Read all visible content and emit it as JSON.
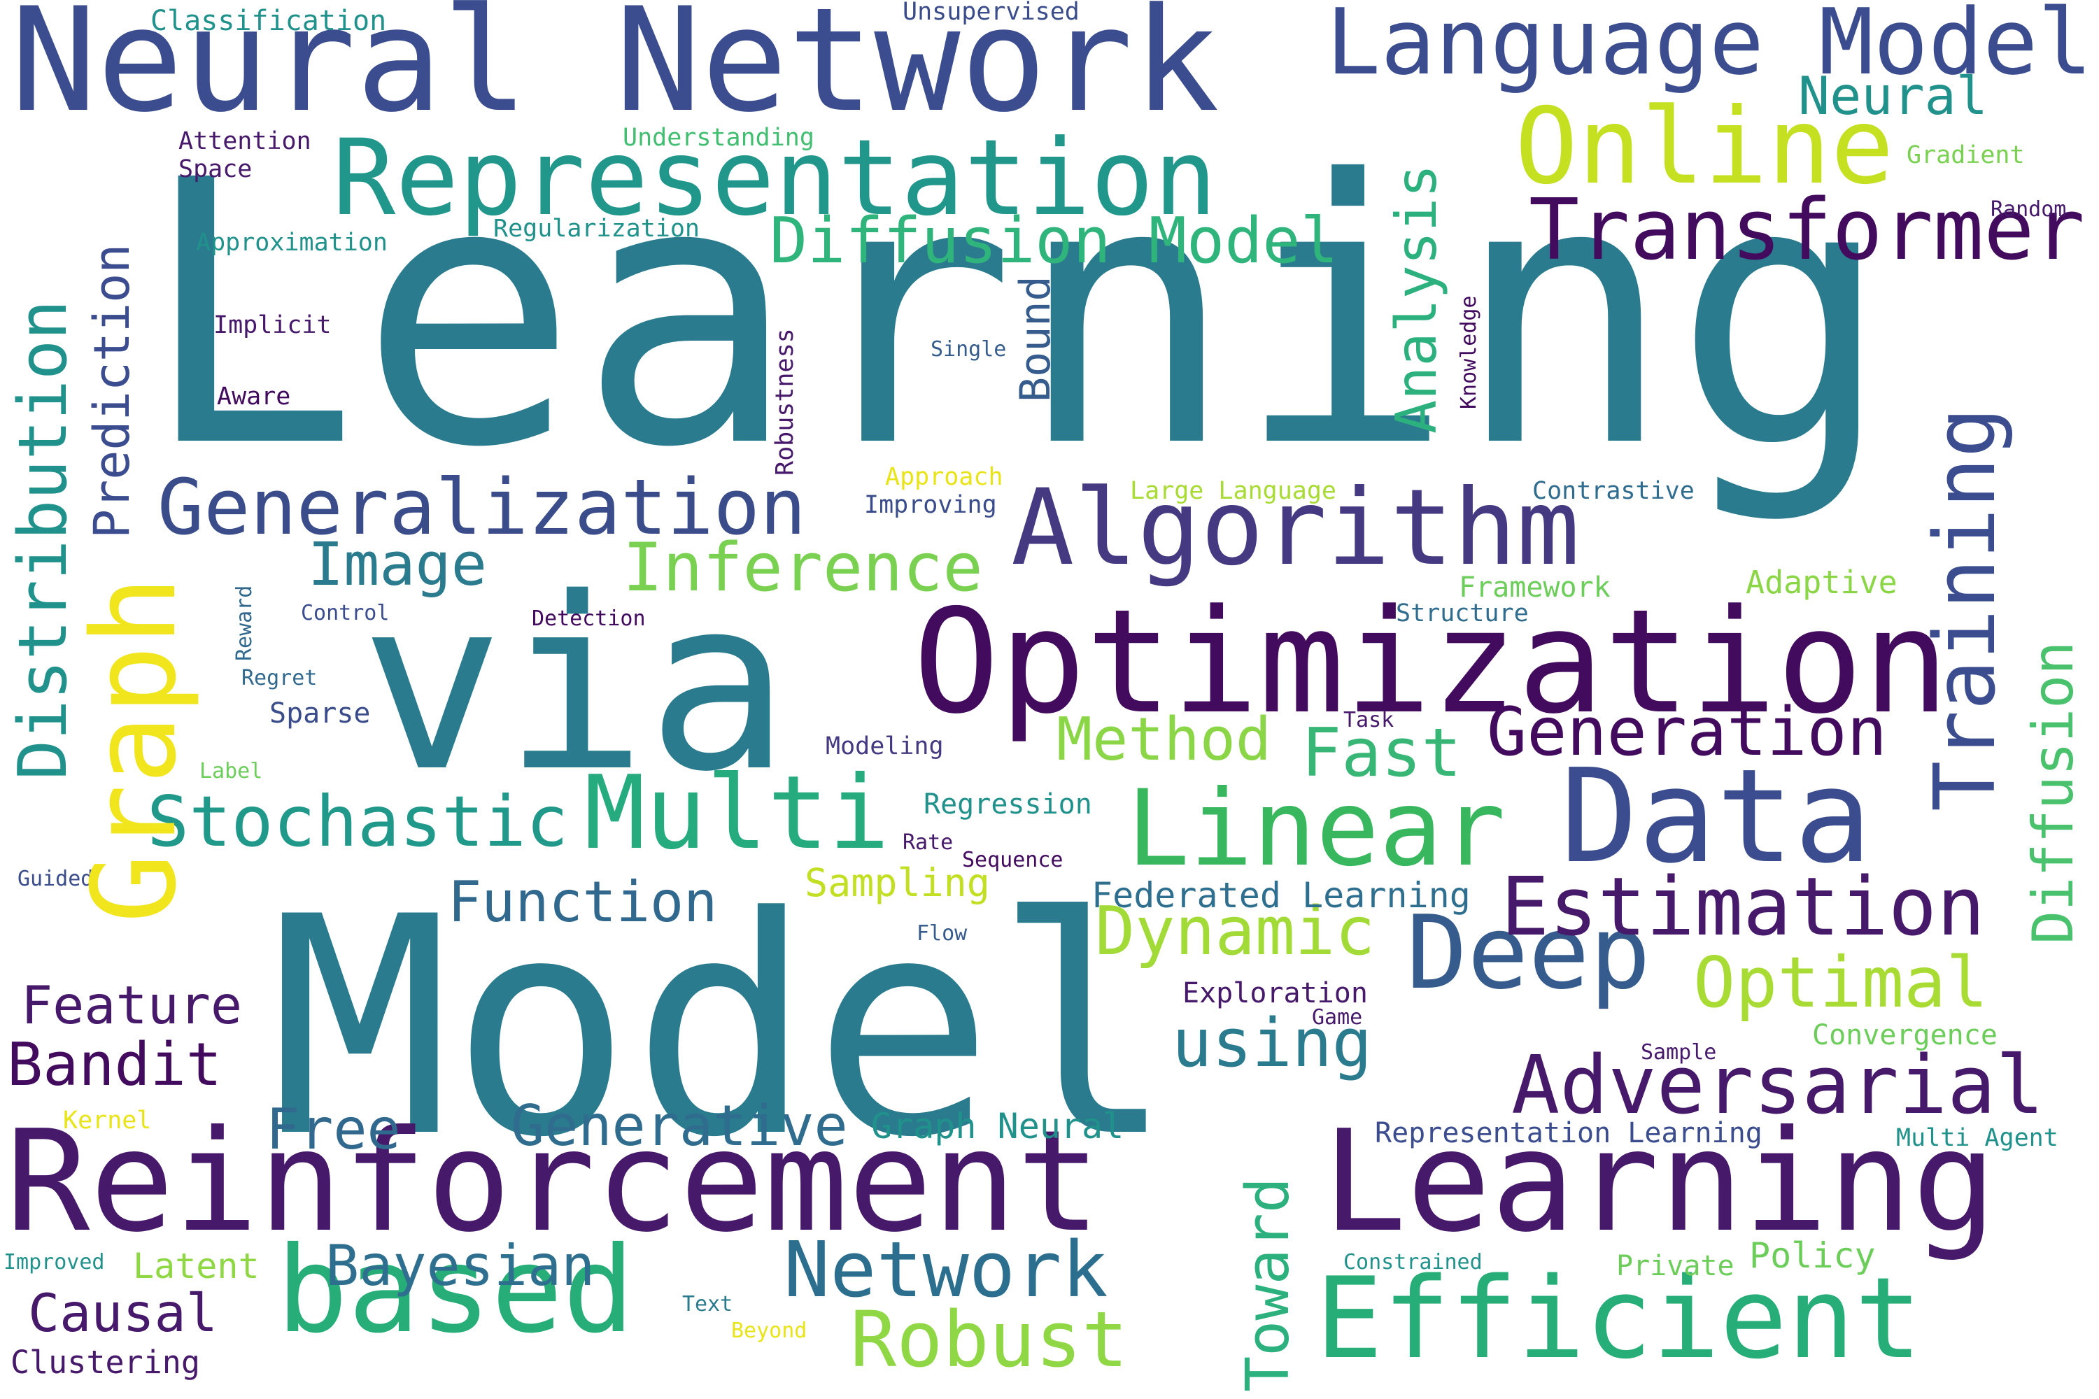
{
  "words": [
    {
      "text": "Learning",
      "color": "#2a7b8e",
      "vertical": false
    },
    {
      "text": "Model",
      "color": "#2a7b8e",
      "vertical": false
    },
    {
      "text": "via",
      "color": "#2a7b8e",
      "vertical": false
    },
    {
      "text": "Reinforcement",
      "color": "#46196a",
      "vertical": false
    },
    {
      "text": "Neural Network",
      "color": "#3b4d8f",
      "vertical": false
    },
    {
      "text": "Optimization",
      "color": "#420b5e",
      "vertical": false
    },
    {
      "text": "Learning",
      "color": "#46196a",
      "vertical": false
    },
    {
      "text": "Data",
      "color": "#3b4d8f",
      "vertical": false
    },
    {
      "text": "Representation",
      "color": "#21968b",
      "vertical": false
    },
    {
      "text": "Efficient",
      "color": "#27ad78",
      "vertical": false
    },
    {
      "text": "Language Model",
      "color": "#3b4d8f",
      "vertical": false
    },
    {
      "text": "Algorithm",
      "color": "#453982",
      "vertical": false
    },
    {
      "text": "Online",
      "color": "#c5e021",
      "vertical": false
    },
    {
      "text": "Linear",
      "color": "#38b75e",
      "vertical": false
    },
    {
      "text": "based",
      "color": "#27ad78",
      "vertical": false
    },
    {
      "text": "Multi",
      "color": "#26ab7e",
      "vertical": false
    },
    {
      "text": "Deep",
      "color": "#365c8d",
      "vertical": false
    },
    {
      "text": "Transformer",
      "color": "#420b5e",
      "vertical": false
    },
    {
      "text": "Generalization",
      "color": "#3a4c8a",
      "vertical": false
    },
    {
      "text": "Estimation",
      "color": "#46196a",
      "vertical": false
    },
    {
      "text": "Adversarial",
      "color": "#46196a",
      "vertical": false
    },
    {
      "text": "Generation",
      "color": "#420b5e",
      "vertical": false
    },
    {
      "text": "Stochastic",
      "color": "#21998a",
      "vertical": false
    },
    {
      "text": "Network",
      "color": "#2b6e8e",
      "vertical": false
    },
    {
      "text": "Diffusion Model",
      "color": "#2fb47c",
      "vertical": false
    },
    {
      "text": "Optimal",
      "color": "#a8db34",
      "vertical": false
    },
    {
      "text": "Robust",
      "color": "#8fd744",
      "vertical": false
    },
    {
      "text": "Inference",
      "color": "#7ad151",
      "vertical": false
    },
    {
      "text": "Dynamic",
      "color": "#a2da37",
      "vertical": false
    },
    {
      "text": "using",
      "color": "#2a7b8e",
      "vertical": false
    },
    {
      "text": "Function",
      "color": "#31688e",
      "vertical": false
    },
    {
      "text": "Method",
      "color": "#8bd646",
      "vertical": false
    },
    {
      "text": "Fast",
      "color": "#37b676",
      "vertical": false
    },
    {
      "text": "Image",
      "color": "#2a7b8e",
      "vertical": false
    },
    {
      "text": "Generative",
      "color": "#2f6c8e",
      "vertical": false
    },
    {
      "text": "Feature",
      "color": "#46196a",
      "vertical": false
    },
    {
      "text": "Bandit",
      "color": "#420b5e",
      "vertical": false
    },
    {
      "text": "Free",
      "color": "#31688e",
      "vertical": false
    },
    {
      "text": "Bayesian",
      "color": "#2e6e8e",
      "vertical": false
    },
    {
      "text": "Causal",
      "color": "#46196a",
      "vertical": false
    },
    {
      "text": "Neural",
      "color": "#21918c",
      "vertical": false
    },
    {
      "text": "Graph Neural",
      "color": "#21918c",
      "vertical": false
    },
    {
      "text": "Policy",
      "color": "#6ccd5a",
      "vertical": false
    },
    {
      "text": "Federated Learning",
      "color": "#2e6e8e",
      "vertical": false
    },
    {
      "text": "Representation Learning",
      "color": "#3b4d8f",
      "vertical": false
    },
    {
      "text": "Latent",
      "color": "#8fd744",
      "vertical": false
    },
    {
      "text": "Clustering",
      "color": "#46196a",
      "vertical": false
    },
    {
      "text": "Sampling",
      "color": "#c2df23",
      "vertical": false
    },
    {
      "text": "Exploration",
      "color": "#46196a",
      "vertical": false
    },
    {
      "text": "Regression",
      "color": "#21918c",
      "vertical": false
    },
    {
      "text": "Adaptive",
      "color": "#8bd646",
      "vertical": false
    },
    {
      "text": "Convergence",
      "color": "#6ccd5a",
      "vertical": false
    },
    {
      "text": "Framework",
      "color": "#6ccd5a",
      "vertical": false
    },
    {
      "text": "Structure",
      "color": "#2f6c8e",
      "vertical": false
    },
    {
      "text": "Contrastive",
      "color": "#2f6c8e",
      "vertical": false
    },
    {
      "text": "Approach",
      "color": "#e8e419",
      "vertical": false
    },
    {
      "text": "Improving",
      "color": "#3a4c8a",
      "vertical": false
    },
    {
      "text": "Large Language",
      "color": "#a8db34",
      "vertical": false
    },
    {
      "text": "Classification",
      "color": "#21918c",
      "vertical": false
    },
    {
      "text": "Unsupervised",
      "color": "#3a4c8a",
      "vertical": false
    },
    {
      "text": "Understanding",
      "color": "#42be71",
      "vertical": false
    },
    {
      "text": "Attention",
      "color": "#46196a",
      "vertical": false
    },
    {
      "text": "Space",
      "color": "#46196a",
      "vertical": false
    },
    {
      "text": "Approximation",
      "color": "#21918c",
      "vertical": false
    },
    {
      "text": "Regularization",
      "color": "#21918c",
      "vertical": false
    },
    {
      "text": "Implicit",
      "color": "#46196a",
      "vertical": false
    },
    {
      "text": "Aware",
      "color": "#420b5e",
      "vertical": false
    },
    {
      "text": "Single",
      "color": "#365c8d",
      "vertical": false
    },
    {
      "text": "Gradient",
      "color": "#7ad151",
      "vertical": false
    },
    {
      "text": "Random",
      "color": "#46196a",
      "vertical": false
    },
    {
      "text": "Control",
      "color": "#3b4d8f",
      "vertical": false
    },
    {
      "text": "Detection",
      "color": "#420b5e",
      "vertical": false
    },
    {
      "text": "Regret",
      "color": "#31688e",
      "vertical": false
    },
    {
      "text": "Sparse",
      "color": "#3a4c8a",
      "vertical": false
    },
    {
      "text": "Modeling",
      "color": "#453982",
      "vertical": false
    },
    {
      "text": "Task",
      "color": "#46196a",
      "vertical": false
    },
    {
      "text": "Label",
      "color": "#6ccd5a",
      "vertical": false
    },
    {
      "text": "Rate",
      "color": "#46196a",
      "vertical": false
    },
    {
      "text": "Sequence",
      "color": "#420b5e",
      "vertical": false
    },
    {
      "text": "Guided",
      "color": "#3a4c8a",
      "vertical": false
    },
    {
      "text": "Flow",
      "color": "#365c8d",
      "vertical": false
    },
    {
      "text": "Game",
      "color": "#46196a",
      "vertical": false
    },
    {
      "text": "Sample",
      "color": "#46196a",
      "vertical": false
    },
    {
      "text": "Multi Agent",
      "color": "#21918c",
      "vertical": false
    },
    {
      "text": "Kernel",
      "color": "#e8e419",
      "vertical": false
    },
    {
      "text": "Improved",
      "color": "#21918c",
      "vertical": false
    },
    {
      "text": "Text",
      "color": "#2a7b8e",
      "vertical": false
    },
    {
      "text": "Beyond",
      "color": "#e8e419",
      "vertical": false
    },
    {
      "text": "Constrained",
      "color": "#21918c",
      "vertical": false
    },
    {
      "text": "Private",
      "color": "#6ccd5a",
      "vertical": false
    },
    {
      "text": "Distribution",
      "color": "#21918c",
      "vertical": true
    },
    {
      "text": "Graph",
      "color": "#f1e51d",
      "vertical": true
    },
    {
      "text": "Prediction",
      "color": "#3b4d8f",
      "vertical": true
    },
    {
      "text": "Analysis",
      "color": "#2cb17e",
      "vertical": true
    },
    {
      "text": "Training",
      "color": "#3b4d8f",
      "vertical": true
    },
    {
      "text": "Diffusion",
      "color": "#4ac16d",
      "vertical": true
    },
    {
      "text": "Toward",
      "color": "#2cb17e",
      "vertical": true
    },
    {
      "text": "Bound",
      "color": "#365c8d",
      "vertical": true
    },
    {
      "text": "Robustness",
      "color": "#46196a",
      "vertical": true
    },
    {
      "text": "Knowledge",
      "color": "#420b5e",
      "vertical": true
    },
    {
      "text": "Reward",
      "color": "#31688e",
      "vertical": true
    }
  ]
}
